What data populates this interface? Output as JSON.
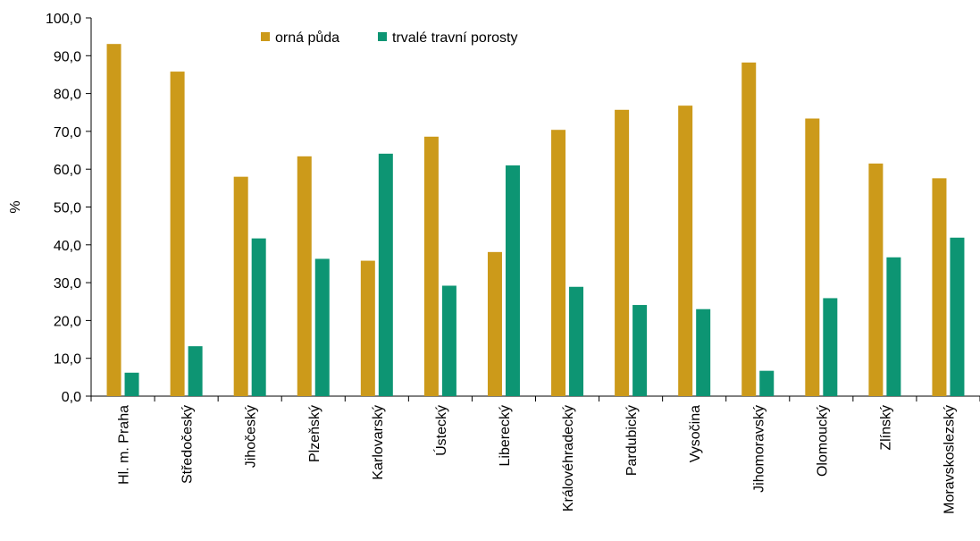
{
  "chart_data": {
    "type": "bar",
    "ylabel": "%",
    "xlabel": "",
    "ylim": [
      0,
      100
    ],
    "ytick_step": 10,
    "ytick_labels": [
      "0,0",
      "10,0",
      "20,0",
      "30,0",
      "40,0",
      "50,0",
      "60,0",
      "70,0",
      "80,0",
      "90,0",
      "100,0"
    ],
    "grid": false,
    "legend_position": "top-center",
    "categories": [
      "Hl. m. Praha",
      "Středočeský",
      "Jihočeský",
      "Plzeňský",
      "Karlovarský",
      "Ústecký",
      "Liberecký",
      "Královéhradecký",
      "Pardubický",
      "Vysočina",
      "Jihomoravský",
      "Olomoucký",
      "Zlínský",
      "Moravskoslezský"
    ],
    "series": [
      {
        "name": "orná půda",
        "color": "#cc9a1a",
        "values": [
          93.1,
          85.8,
          58.0,
          63.4,
          35.8,
          68.6,
          38.1,
          70.4,
          75.7,
          76.8,
          88.2,
          73.4,
          61.5,
          57.6
        ]
      },
      {
        "name": "trvalé travní porosty",
        "color": "#0d9573",
        "values": [
          6.2,
          13.2,
          41.7,
          36.3,
          64.1,
          29.2,
          61.0,
          28.9,
          24.1,
          23.0,
          6.7,
          25.9,
          36.7,
          41.9
        ]
      }
    ]
  }
}
